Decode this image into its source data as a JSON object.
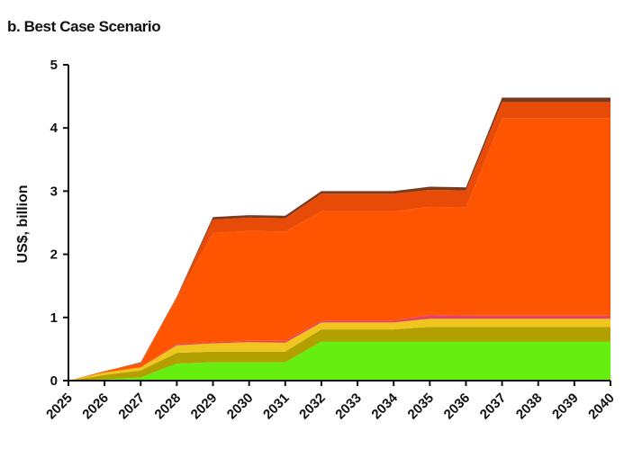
{
  "chart_data": {
    "type": "area",
    "stacked": true,
    "title": "b. Best Case Scenario",
    "xlabel": "",
    "ylabel": "US$, billion",
    "x": [
      "2025",
      "2026",
      "2027",
      "2028",
      "2029",
      "2030",
      "2031",
      "2032",
      "2033",
      "2034",
      "2035",
      "2036",
      "2037",
      "2038",
      "2039",
      "2040"
    ],
    "ylim": [
      0,
      5
    ],
    "yticks": [
      "0",
      "1",
      "2",
      "3",
      "4",
      "5"
    ],
    "grid": false,
    "legend": "none",
    "series": [
      {
        "color": "#66ee11",
        "values": [
          0,
          0.02,
          0.05,
          0.27,
          0.29,
          0.29,
          0.29,
          0.62,
          0.62,
          0.62,
          0.62,
          0.62,
          0.62,
          0.62,
          0.62,
          0.62
        ]
      },
      {
        "color": "#b2a000",
        "values": [
          0,
          0.07,
          0.11,
          0.17,
          0.17,
          0.17,
          0.17,
          0.19,
          0.19,
          0.19,
          0.23,
          0.23,
          0.23,
          0.23,
          0.23,
          0.23
        ]
      },
      {
        "color": "#f0c61e",
        "values": [
          0,
          0.04,
          0.05,
          0.12,
          0.13,
          0.15,
          0.14,
          0.11,
          0.11,
          0.11,
          0.13,
          0.13,
          0.13,
          0.13,
          0.13,
          0.13
        ]
      },
      {
        "color": "#e8435d",
        "values": [
          0,
          0,
          0,
          0.02,
          0.02,
          0.02,
          0.03,
          0.03,
          0.03,
          0.03,
          0.06,
          0.05,
          0.05,
          0.05,
          0.05,
          0.05
        ]
      },
      {
        "color": "#ff5500",
        "values": [
          0,
          0.02,
          0.06,
          0.72,
          1.73,
          1.74,
          1.73,
          1.73,
          1.73,
          1.73,
          1.71,
          1.71,
          3.12,
          3.12,
          3.12,
          3.12
        ]
      },
      {
        "color": "#e84a08",
        "values": [
          0,
          0,
          0.01,
          0.02,
          0.21,
          0.21,
          0.21,
          0.28,
          0.28,
          0.28,
          0.27,
          0.27,
          0.26,
          0.26,
          0.26,
          0.26
        ]
      },
      {
        "color": "#7a3a1e",
        "values": [
          0,
          0,
          0.01,
          0.01,
          0.04,
          0.04,
          0.04,
          0.04,
          0.04,
          0.04,
          0.05,
          0.05,
          0.07,
          0.07,
          0.07,
          0.07
        ]
      }
    ]
  }
}
